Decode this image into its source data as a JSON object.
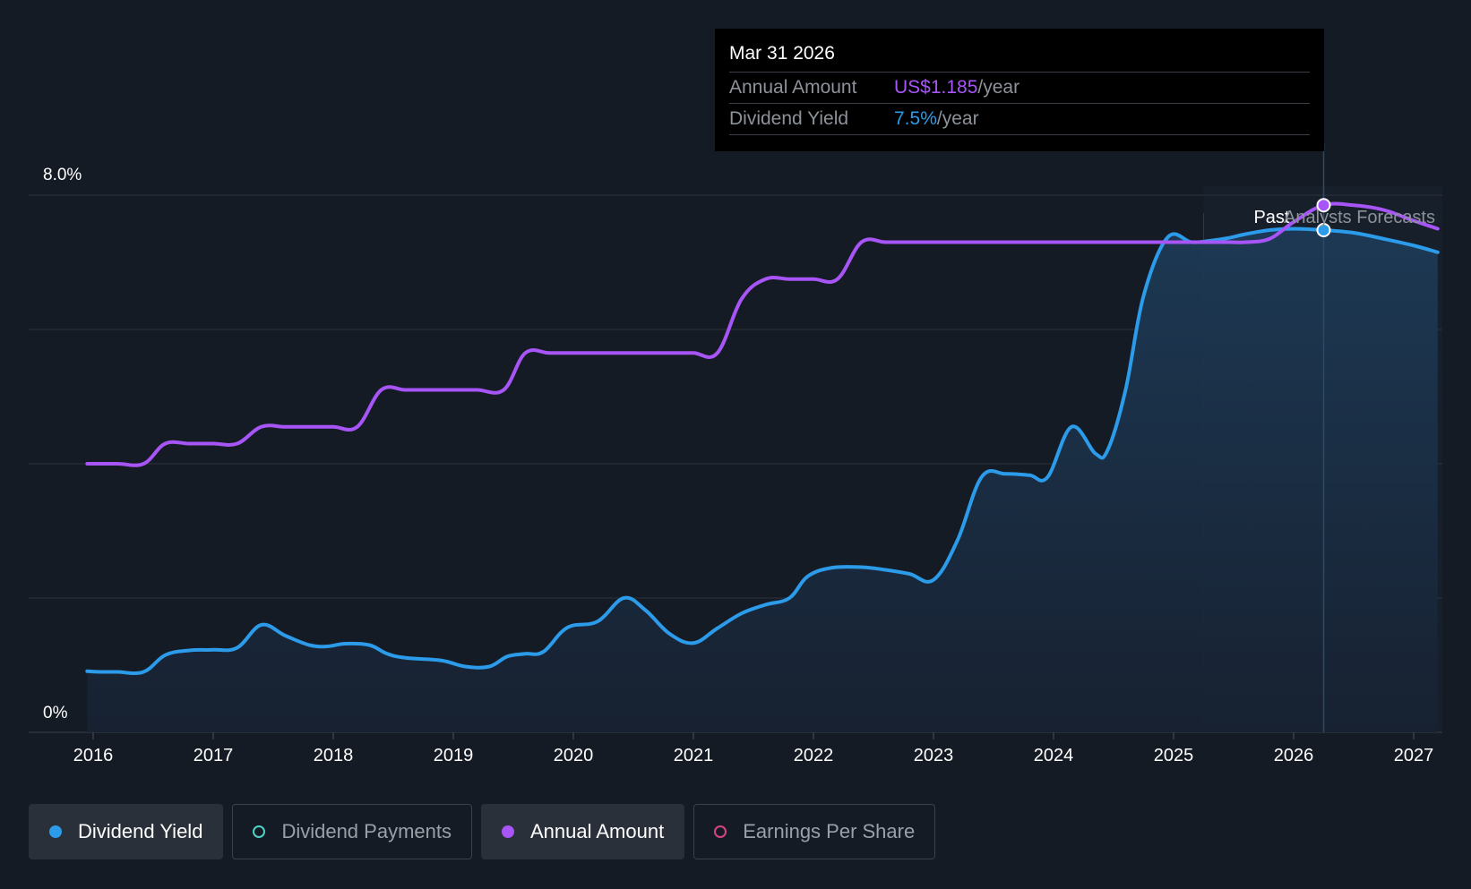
{
  "tooltip": {
    "date": "Mar 31 2026",
    "rows": [
      {
        "label": "Annual Amount",
        "value": "US$1.185",
        "unit": "/year"
      },
      {
        "label": "Dividend Yield",
        "value": "7.5%",
        "unit": "/year"
      }
    ]
  },
  "regions": {
    "past_label": "Past",
    "forecast_label": "Analysts Forecasts"
  },
  "legend": [
    {
      "label": "Dividend Yield",
      "color": "#2b9bea",
      "active": true,
      "filled": true
    },
    {
      "label": "Dividend Payments",
      "color": "#4fd1c5",
      "active": false,
      "filled": false
    },
    {
      "label": "Annual Amount",
      "color": "#a855f7",
      "active": true,
      "filled": true
    },
    {
      "label": "Earnings Per Share",
      "color": "#d6457f",
      "active": false,
      "filled": false
    }
  ],
  "colors": {
    "background": "#151b24",
    "yield": "#2b9bea",
    "annual_amount": "#a855f7",
    "grid": "#2c333d"
  },
  "chart_data": {
    "type": "line",
    "title": "",
    "xlabel": "",
    "ylabel": "",
    "y_tick_labels": [
      "8.0%",
      "0%"
    ],
    "ylim": [
      0,
      8.0
    ],
    "xlim": [
      2015.5,
      2027.2
    ],
    "x_ticks": [
      2016,
      2017,
      2018,
      2019,
      2020,
      2021,
      2022,
      2023,
      2024,
      2025,
      2026,
      2027
    ],
    "x_tick_labels": [
      "2016",
      "2017",
      "2018",
      "2019",
      "2020",
      "2021",
      "2022",
      "2023",
      "2024",
      "2025",
      "2026",
      "2027"
    ],
    "grid": true,
    "past_end": 2025.25,
    "forecast_start": 2025.65,
    "highlight_x": 2026.25,
    "series": [
      {
        "name": "Dividend Yield",
        "color": "#2b9bea",
        "area": true,
        "x": [
          2015.95,
          2016.05,
          2016.2,
          2016.42,
          2016.6,
          2016.8,
          2017.0,
          2017.2,
          2017.4,
          2017.6,
          2017.8,
          2017.95,
          2018.1,
          2018.3,
          2018.45,
          2018.6,
          2018.9,
          2019.1,
          2019.3,
          2019.45,
          2019.6,
          2019.75,
          2019.95,
          2020.2,
          2020.42,
          2020.6,
          2020.8,
          2021.0,
          2021.2,
          2021.4,
          2021.6,
          2021.8,
          2021.95,
          2022.15,
          2022.4,
          2022.6,
          2022.8,
          2023.0,
          2023.2,
          2023.4,
          2023.6,
          2023.8,
          2023.95,
          2024.15,
          2024.35,
          2024.45,
          2024.6,
          2024.75,
          2024.95,
          2025.15,
          2025.3,
          2025.45,
          2025.6,
          2025.8,
          2026.0,
          2026.25,
          2026.5,
          2026.75,
          2027.0,
          2027.2
        ],
        "y": [
          0.91,
          0.9,
          0.9,
          0.9,
          1.15,
          1.22,
          1.23,
          1.26,
          1.6,
          1.44,
          1.3,
          1.28,
          1.32,
          1.3,
          1.17,
          1.11,
          1.07,
          0.98,
          0.98,
          1.13,
          1.17,
          1.2,
          1.56,
          1.65,
          2.0,
          1.82,
          1.47,
          1.33,
          1.55,
          1.77,
          1.9,
          2.0,
          2.32,
          2.45,
          2.46,
          2.42,
          2.36,
          2.27,
          2.86,
          3.8,
          3.85,
          3.83,
          3.8,
          4.55,
          4.15,
          4.2,
          5.1,
          6.5,
          7.37,
          7.3,
          7.32,
          7.36,
          7.42,
          7.48,
          7.5,
          7.48,
          7.44,
          7.35,
          7.25,
          7.15
        ]
      },
      {
        "name": "Annual Amount",
        "color": "#a855f7",
        "area": false,
        "x": [
          2015.95,
          2016.2,
          2016.42,
          2016.6,
          2016.8,
          2017.0,
          2017.2,
          2017.4,
          2017.6,
          2017.8,
          2018.0,
          2018.2,
          2018.4,
          2018.6,
          2018.8,
          2019.0,
          2019.2,
          2019.42,
          2019.6,
          2019.8,
          2020.0,
          2020.2,
          2020.4,
          2020.6,
          2020.8,
          2021.0,
          2021.2,
          2021.4,
          2021.6,
          2021.8,
          2022.0,
          2022.2,
          2022.4,
          2022.6,
          2022.8,
          2023.0,
          2023.2,
          2023.4,
          2023.6,
          2023.8,
          2024.0,
          2024.2,
          2024.4,
          2024.6,
          2024.8,
          2025.0,
          2025.2,
          2025.45,
          2025.6,
          2025.8,
          2026.0,
          2026.25,
          2026.5,
          2026.75,
          2027.0,
          2027.2
        ],
        "y": [
          4.0,
          4.0,
          4.0,
          4.3,
          4.3,
          4.3,
          4.3,
          4.55,
          4.55,
          4.55,
          4.55,
          4.55,
          5.1,
          5.1,
          5.1,
          5.1,
          5.1,
          5.1,
          5.65,
          5.65,
          5.65,
          5.65,
          5.65,
          5.65,
          5.65,
          5.65,
          5.65,
          6.45,
          6.75,
          6.75,
          6.75,
          6.75,
          7.3,
          7.3,
          7.3,
          7.3,
          7.3,
          7.3,
          7.3,
          7.3,
          7.3,
          7.3,
          7.3,
          7.3,
          7.3,
          7.3,
          7.3,
          7.3,
          7.3,
          7.35,
          7.6,
          7.85,
          7.85,
          7.78,
          7.62,
          7.5
        ]
      }
    ]
  }
}
